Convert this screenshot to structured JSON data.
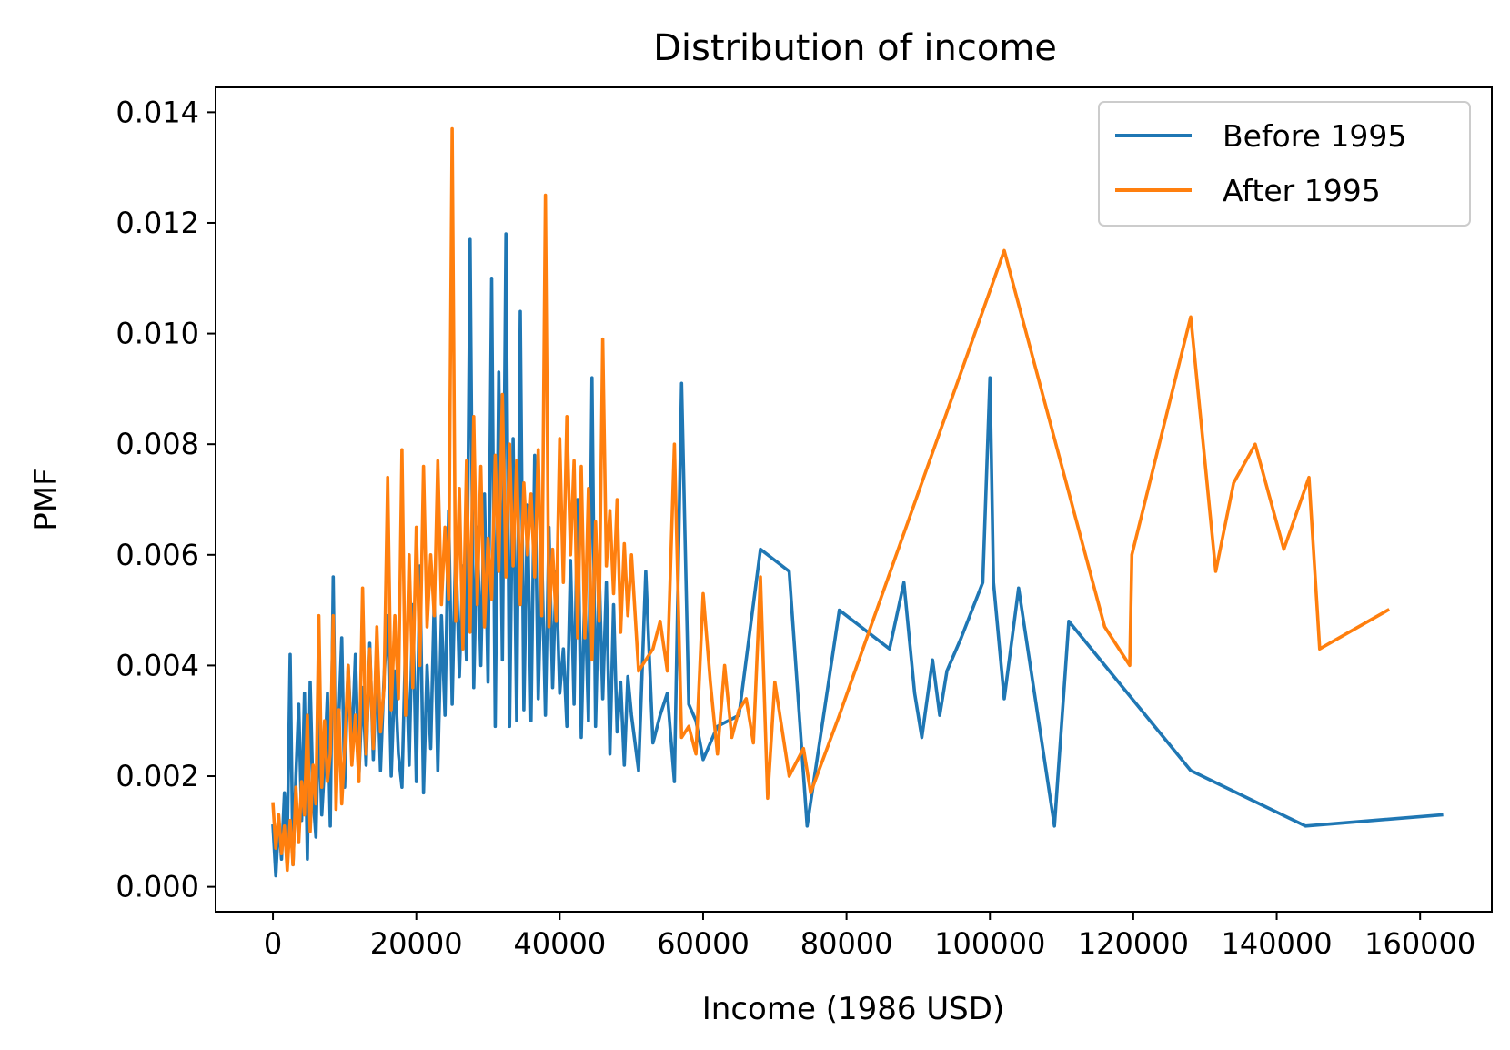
{
  "chart_data": {
    "type": "line",
    "title": "Distribution of income",
    "xlabel": "Income (1986 USD)",
    "ylabel": "PMF",
    "xlim": [
      -8000,
      170000
    ],
    "ylim": [
      -0.00045,
      0.01445
    ],
    "xticks": [
      0,
      20000,
      40000,
      60000,
      80000,
      100000,
      120000,
      140000,
      160000
    ],
    "xtick_labels": [
      "0",
      "20000",
      "40000",
      "60000",
      "80000",
      "100000",
      "120000",
      "140000",
      "160000"
    ],
    "yticks": [
      0.0,
      0.002,
      0.004,
      0.006,
      0.008,
      0.01,
      0.012,
      0.014
    ],
    "ytick_labels": [
      "0.000",
      "0.002",
      "0.004",
      "0.006",
      "0.008",
      "0.010",
      "0.012",
      "0.014"
    ],
    "grid": false,
    "legend": "top-right",
    "series": [
      {
        "name": "Before 1995",
        "color": "#1f77b4",
        "x": [
          0,
          400,
          800,
          1200,
          1600,
          2000,
          2400,
          2800,
          3200,
          3600,
          4000,
          4400,
          4800,
          5200,
          5600,
          6000,
          6400,
          6800,
          7200,
          7600,
          8000,
          8400,
          8800,
          9200,
          9600,
          10000,
          10500,
          11000,
          11500,
          12000,
          12500,
          13000,
          13500,
          14000,
          14500,
          15000,
          15500,
          16000,
          16500,
          17000,
          17500,
          18000,
          18500,
          19000,
          19500,
          20000,
          20500,
          21000,
          21500,
          22000,
          22500,
          23000,
          23500,
          24000,
          24500,
          25000,
          25500,
          26000,
          26500,
          27000,
          27500,
          28000,
          28500,
          29000,
          29500,
          30000,
          30500,
          31000,
          31500,
          32000,
          32500,
          33000,
          33500,
          34000,
          34500,
          35000,
          35500,
          36000,
          36500,
          37000,
          37500,
          38000,
          38500,
          39000,
          39500,
          40000,
          40500,
          41000,
          41500,
          42000,
          42500,
          43000,
          43500,
          44000,
          44500,
          45000,
          45500,
          46000,
          46500,
          47000,
          47500,
          48000,
          48500,
          49000,
          49500,
          50000,
          51000,
          52000,
          53000,
          54000,
          55000,
          56000,
          57000,
          58000,
          59000,
          60000,
          61000,
          62000,
          65000,
          68000,
          72000,
          74500,
          79000,
          86000,
          88000,
          89500,
          90500,
          92000,
          93000,
          94000,
          96000,
          99000,
          100000,
          100500,
          102000,
          104000,
          109000,
          111000,
          128000,
          144000,
          163000
        ],
        "y": [
          0.0011,
          0.0002,
          0.0012,
          0.0005,
          0.0017,
          0.0008,
          0.0042,
          0.0004,
          0.002,
          0.0033,
          0.0012,
          0.0035,
          0.0005,
          0.0037,
          0.0016,
          0.0009,
          0.0031,
          0.0013,
          0.0022,
          0.0035,
          0.0011,
          0.0056,
          0.0017,
          0.0031,
          0.0045,
          0.0018,
          0.004,
          0.0025,
          0.0042,
          0.002,
          0.0036,
          0.0022,
          0.0044,
          0.0023,
          0.0041,
          0.0021,
          0.0038,
          0.0049,
          0.002,
          0.0039,
          0.0024,
          0.0018,
          0.0045,
          0.0022,
          0.0051,
          0.0019,
          0.0058,
          0.0017,
          0.004,
          0.0025,
          0.0052,
          0.0021,
          0.0049,
          0.0031,
          0.0068,
          0.0033,
          0.0062,
          0.0038,
          0.0058,
          0.0041,
          0.0117,
          0.0036,
          0.0065,
          0.004,
          0.0071,
          0.0037,
          0.011,
          0.0029,
          0.0093,
          0.0041,
          0.0118,
          0.0029,
          0.0081,
          0.003,
          0.0104,
          0.0032,
          0.0069,
          0.003,
          0.0078,
          0.0034,
          0.006,
          0.0031,
          0.0065,
          0.0036,
          0.0057,
          0.0035,
          0.0043,
          0.0029,
          0.0059,
          0.0033,
          0.007,
          0.0027,
          0.0054,
          0.003,
          0.0092,
          0.0029,
          0.0057,
          0.0034,
          0.0055,
          0.0024,
          0.0051,
          0.0028,
          0.0037,
          0.0022,
          0.0038,
          0.0031,
          0.0021,
          0.0057,
          0.0026,
          0.0031,
          0.0035,
          0.0019,
          0.0091,
          0.0033,
          0.003,
          0.0023,
          0.0026,
          0.0029,
          0.0031,
          0.0061,
          0.0057,
          0.0011,
          0.005,
          0.0043,
          0.0055,
          0.0035,
          0.0027,
          0.0041,
          0.0031,
          0.0039,
          0.0045,
          0.0055,
          0.0092,
          0.0055,
          0.0034,
          0.0054,
          0.0011,
          0.0048,
          0.0021,
          0.0011,
          0.0013
        ]
      },
      {
        "name": "After 1995",
        "color": "#ff7f0e",
        "x": [
          0,
          400,
          800,
          1200,
          1600,
          2000,
          2400,
          2800,
          3200,
          3600,
          4000,
          4400,
          4800,
          5200,
          5600,
          6000,
          6400,
          6800,
          7200,
          7600,
          8000,
          8400,
          8800,
          9200,
          9600,
          10000,
          10500,
          11000,
          11500,
          12000,
          12500,
          13000,
          13500,
          14000,
          14500,
          15000,
          15500,
          16000,
          16500,
          17000,
          17500,
          18000,
          18500,
          19000,
          19500,
          20000,
          20500,
          21000,
          21500,
          22000,
          22500,
          23000,
          23500,
          24000,
          24500,
          25000,
          25500,
          26000,
          26500,
          27000,
          27500,
          28000,
          28500,
          29000,
          29500,
          30000,
          30500,
          31000,
          31500,
          32000,
          32500,
          33000,
          33500,
          34000,
          34500,
          35000,
          35500,
          36000,
          36500,
          37000,
          37500,
          38000,
          38500,
          39000,
          39500,
          40000,
          40500,
          41000,
          41500,
          42000,
          42500,
          43000,
          43500,
          44000,
          44500,
          45000,
          45500,
          46000,
          46500,
          47000,
          47500,
          48000,
          48500,
          49000,
          49500,
          50000,
          51000,
          52000,
          53000,
          54000,
          55000,
          56000,
          57000,
          58000,
          59000,
          60000,
          61000,
          62000,
          63000,
          64000,
          65000,
          66000,
          67000,
          68000,
          69000,
          70000,
          72000,
          74000,
          75000,
          79000,
          102000,
          116000,
          119500,
          119800,
          128000,
          131500,
          134000,
          137000,
          141000,
          144500,
          146000,
          155500
        ],
        "y": [
          0.0015,
          0.0007,
          0.0013,
          0.0006,
          0.0011,
          0.0003,
          0.0012,
          0.0004,
          0.0018,
          0.0008,
          0.0019,
          0.0013,
          0.0031,
          0.001,
          0.0022,
          0.0015,
          0.0049,
          0.0018,
          0.003,
          0.0019,
          0.0024,
          0.0049,
          0.0014,
          0.0032,
          0.0015,
          0.0025,
          0.004,
          0.0022,
          0.0031,
          0.0019,
          0.0054,
          0.0024,
          0.0043,
          0.0025,
          0.0047,
          0.0028,
          0.0036,
          0.0074,
          0.0032,
          0.0049,
          0.0034,
          0.0079,
          0.0031,
          0.006,
          0.0036,
          0.0065,
          0.004,
          0.0076,
          0.0047,
          0.006,
          0.0049,
          0.0077,
          0.0051,
          0.0065,
          0.0052,
          0.0137,
          0.0048,
          0.0072,
          0.0043,
          0.0077,
          0.0046,
          0.0085,
          0.0051,
          0.0076,
          0.0047,
          0.0063,
          0.0052,
          0.0078,
          0.0057,
          0.0089,
          0.0056,
          0.008,
          0.0058,
          0.0077,
          0.0051,
          0.0073,
          0.006,
          0.0071,
          0.0056,
          0.0079,
          0.0049,
          0.0125,
          0.0047,
          0.0061,
          0.0048,
          0.0081,
          0.0055,
          0.0085,
          0.006,
          0.0077,
          0.0045,
          0.0076,
          0.0045,
          0.0072,
          0.0041,
          0.0066,
          0.0048,
          0.0099,
          0.0058,
          0.0068,
          0.0053,
          0.007,
          0.0046,
          0.0062,
          0.0049,
          0.006,
          0.0039,
          0.0041,
          0.0043,
          0.0048,
          0.0039,
          0.008,
          0.0027,
          0.0029,
          0.0024,
          0.0053,
          0.0037,
          0.0024,
          0.004,
          0.0027,
          0.0032,
          0.0034,
          0.0026,
          0.0056,
          0.0016,
          0.0037,
          0.002,
          0.0025,
          0.0017,
          0.0031,
          0.0115,
          0.0047,
          0.004,
          0.006,
          0.0103,
          0.0057,
          0.0073,
          0.008,
          0.0061,
          0.0074,
          0.0043,
          0.005
        ]
      }
    ]
  }
}
